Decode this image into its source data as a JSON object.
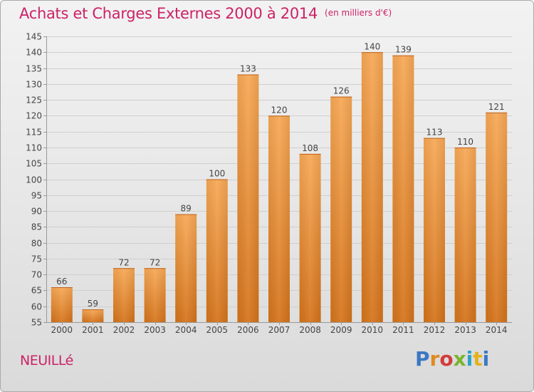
{
  "header": {
    "title": "Achats et Charges Externes 2000 à 2014",
    "unit": "(en milliers d'€)"
  },
  "footer": {
    "commune": "NEUILLé",
    "logo_text": "Proxiti"
  },
  "colors": {
    "bar_top": "#f7a855",
    "bar_bottom": "#d4731a",
    "title": "#cc2266"
  },
  "chart_data": {
    "type": "bar",
    "title": "Achats et Charges Externes 2000 à 2014",
    "xlabel": "",
    "ylabel": "",
    "ylim": [
      55,
      145
    ],
    "yticks": [
      55,
      60,
      65,
      70,
      75,
      80,
      85,
      90,
      95,
      100,
      105,
      110,
      115,
      120,
      125,
      130,
      135,
      140,
      145
    ],
    "grid": true,
    "categories": [
      "2000",
      "2001",
      "2002",
      "2003",
      "2004",
      "2005",
      "2006",
      "2007",
      "2008",
      "2009",
      "2010",
      "2011",
      "2012",
      "2013",
      "2014"
    ],
    "values": [
      66,
      59,
      72,
      72,
      89,
      100,
      133,
      120,
      108,
      126,
      140,
      139,
      113,
      110,
      121
    ]
  }
}
